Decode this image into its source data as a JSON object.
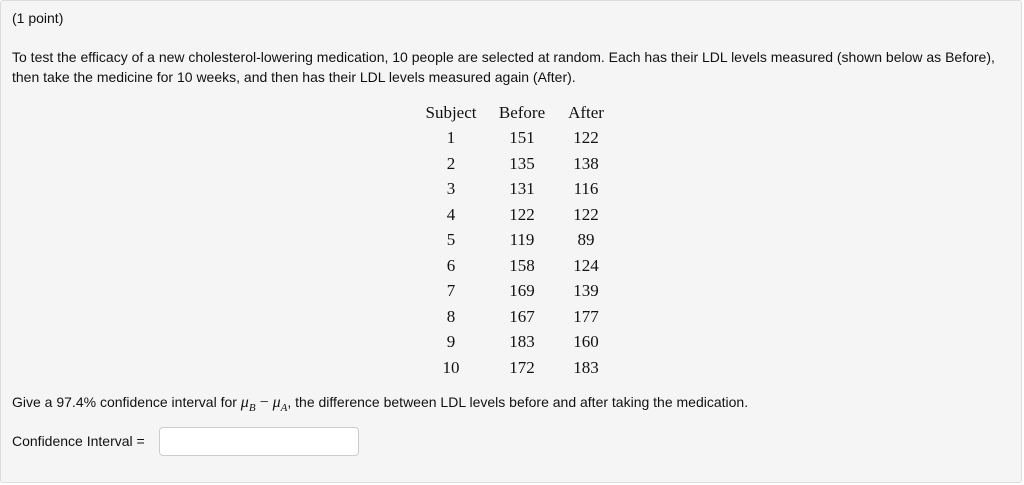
{
  "points": "(1 point)",
  "intro": "To test the efficacy of a new cholesterol-lowering medication, 10 people are selected at random. Each has their LDL levels measured (shown below as Before), then take the medicine for 10 weeks, and then has their LDL levels measured again (After).",
  "table": {
    "headers": [
      "Subject",
      "Before",
      "After"
    ],
    "rows": [
      [
        "1",
        "151",
        "122"
      ],
      [
        "2",
        "135",
        "138"
      ],
      [
        "3",
        "131",
        "116"
      ],
      [
        "4",
        "122",
        "122"
      ],
      [
        "5",
        "119",
        "89"
      ],
      [
        "6",
        "158",
        "124"
      ],
      [
        "7",
        "169",
        "139"
      ],
      [
        "8",
        "167",
        "177"
      ],
      [
        "9",
        "183",
        "160"
      ],
      [
        "10",
        "172",
        "183"
      ]
    ]
  },
  "question": {
    "prefix": "Give a 97.4% confidence interval for ",
    "mu": "μ",
    "sub_b": "B",
    "minus": " − ",
    "sub_a": "A",
    "suffix": ", the difference between LDL levels before and after taking the medication."
  },
  "ci": {
    "label": "Confidence Interval =",
    "value": ""
  }
}
